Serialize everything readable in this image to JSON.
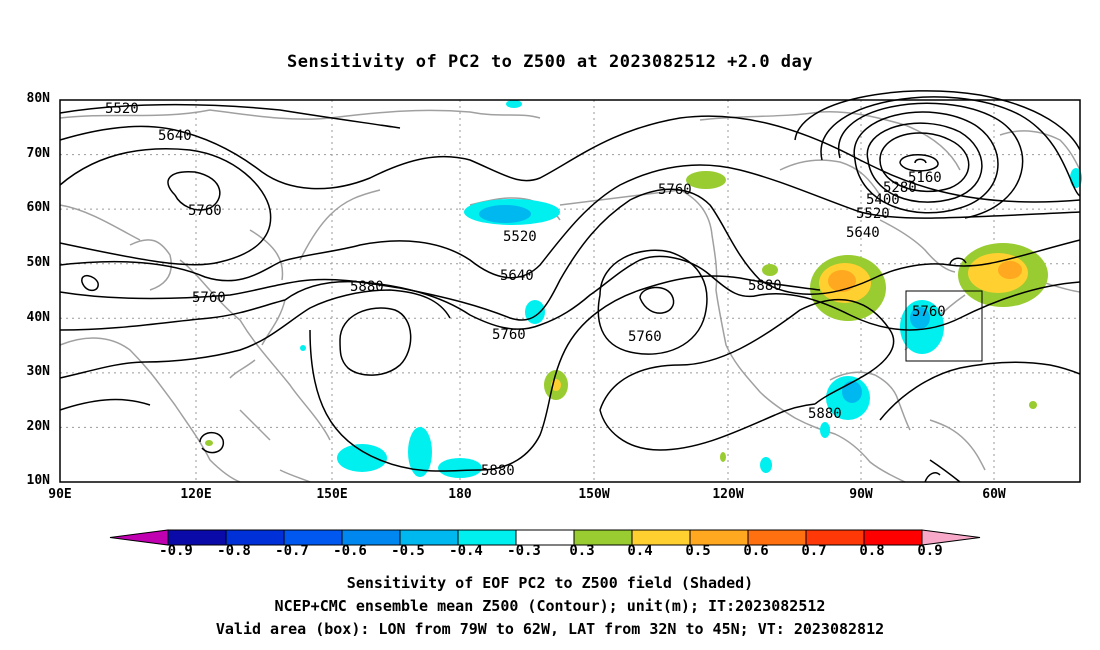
{
  "title": "Sensitivity of PC2 to Z500 at 2023082512 +2.0 day",
  "lat_labels": [
    "80N",
    "70N",
    "60N",
    "50N",
    "40N",
    "30N",
    "20N",
    "10N"
  ],
  "lon_labels": [
    "90E",
    "120E",
    "150E",
    "180",
    "150W",
    "120W",
    "90W",
    "60W"
  ],
  "contour_labels": [
    "5520",
    "5640",
    "5760",
    "5760",
    "5880",
    "5520",
    "5640",
    "5760",
    "5760",
    "5760",
    "5880",
    "5880",
    "5880",
    "5880",
    "5160",
    "5280",
    "5400",
    "5520",
    "5640",
    "5760"
  ],
  "colorbar": {
    "labels": [
      "-0.9",
      "-0.8",
      "-0.7",
      "-0.6",
      "-0.5",
      "-0.4",
      "-0.3",
      "0.3",
      "0.4",
      "0.5",
      "0.6",
      "0.7",
      "0.8",
      "0.9"
    ],
    "colors": [
      "#0a0aa8",
      "#0030d8",
      "#0058f0",
      "#0088f0",
      "#00b8f0",
      "#00f0f0",
      "#ffffff",
      "#98cc30",
      "#ffd030",
      "#ffa820",
      "#ff7010",
      "#ff3808",
      "#ff0000"
    ],
    "low_end_color": "#c000b0",
    "high_end_color": "#f8a8c8"
  },
  "captions": [
    "Sensitivity of EOF PC2 to Z500 field (Shaded)",
    "NCEP+CMC ensemble mean Z500 (Contour); unit(m); IT:2023082512",
    "Valid area (box): LON from 79W to 62W, LAT from 32N to 45N; VT: 2023082812"
  ]
}
